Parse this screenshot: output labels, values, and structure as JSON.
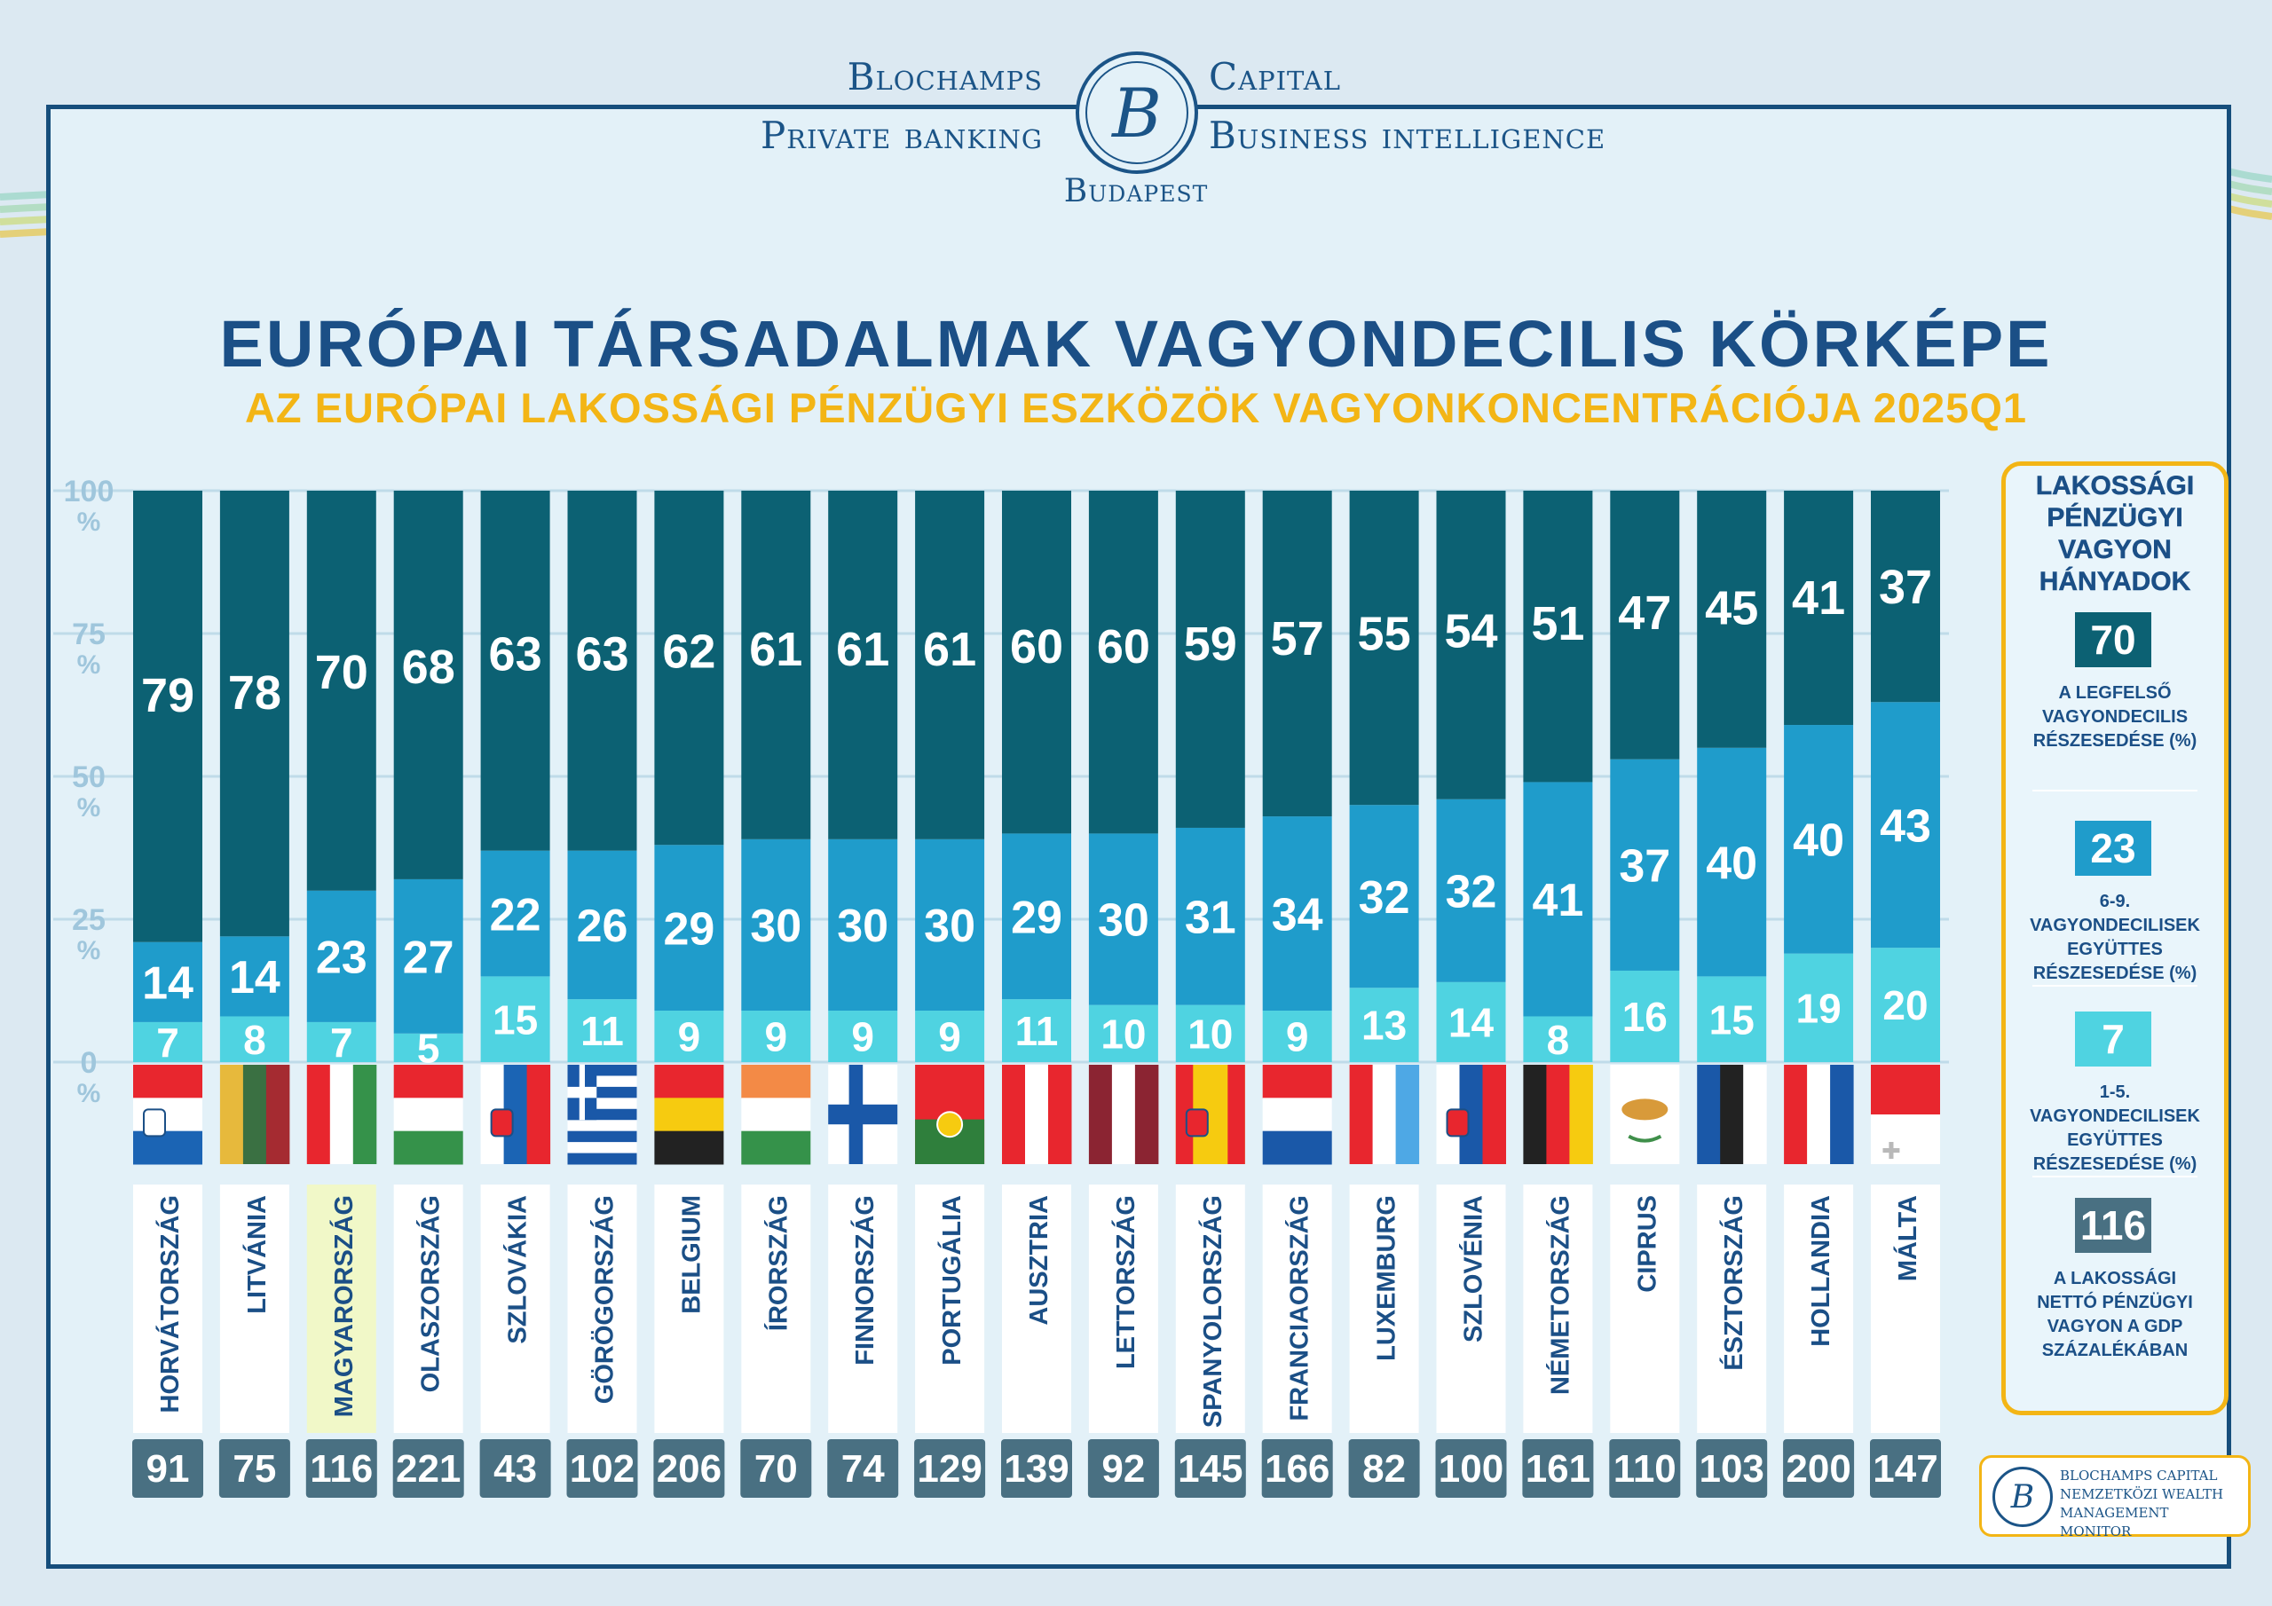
{
  "brand": {
    "left_top": "Blochamps",
    "left_bottom": "Private banking",
    "right_top": "Capital",
    "right_bottom": "Business intelligence",
    "city": "Budapest",
    "logo_letter": "B"
  },
  "colors": {
    "top_decile": "#0c6173",
    "deciles_6_9": "#1f9ccb",
    "deciles_1_5": "#4fd3e1",
    "label_box": "#497082",
    "title": "#1b4f86",
    "subtitle": "#f3b515",
    "highlight_label": "#f1f8c8"
  },
  "legend": {
    "title": "LAKOSSÁGI\nPÉNZÜGYI\nVAGYON\nHÁNYADOK",
    "items": [
      {
        "value": "70",
        "text": "A LEGFELSŐ\nVAGYONDECILIS\nRÉSZESEDÉSE (%)",
        "color": "#0c6173"
      },
      {
        "value": "23",
        "text": "6-9.\nVAGYONDECILISEK\nEGYÜTTES\nRÉSZESEDÉSE (%)",
        "color": "#1f9ccb"
      },
      {
        "value": "7",
        "text": "1-5.\nVAGYONDECILISEK\nEGYÜTTES\nRÉSZESEDÉSE (%)",
        "color": "#4fd3e1"
      },
      {
        "value": "116",
        "text": "A LAKOSSÁGI\nNETTÓ PÉNZÜGYI\nVAGYON A GDP\nSZÁZALÉKÁBAN",
        "color": "#497082"
      }
    ]
  },
  "watermark": {
    "logo_letter": "B",
    "text": "BLOCHAMPS CAPITAL\nNEMZETKÖZI WEALTH\nMANAGEMENT MONITOR"
  },
  "chart_data": {
    "type": "bar",
    "stacked": true,
    "title": "EURÓPAI TÁRSADALMAK VAGYONDECILIS KÖRKÉPE",
    "subtitle": "AZ EURÓPAI LAKOSSÁGI PÉNZÜGYI ESZKÖZÖK VAGYONKONCENTRÁCIÓJA 2025Q1",
    "ylim": [
      0,
      100
    ],
    "yticks": [
      {
        "value": 100,
        "label": "100",
        "unit": "%"
      },
      {
        "value": 75,
        "label": "75",
        "unit": "%"
      },
      {
        "value": 50,
        "label": "50",
        "unit": "%"
      },
      {
        "value": 25,
        "label": "25",
        "unit": "%"
      },
      {
        "value": 0,
        "label": "0",
        "unit": "%"
      }
    ],
    "grid": true,
    "categories": [
      "HORVÁTORSZÁG",
      "LITVÁNIA",
      "MAGYARORSZÁG",
      "OLASZORSZÁG",
      "SZLOVÁKIA",
      "GÖRÖGORSZÁG",
      "BELGIUM",
      "ÍRORSZÁG",
      "FINNORSZÁG",
      "PORTUGÁLIA",
      "AUSZTRIA",
      "LETTORSZÁG",
      "SPANYOLORSZÁG",
      "FRANCIAORSZÁG",
      "LUXEMBURG",
      "SZLOVÉNIA",
      "NÉMETORSZÁG",
      "CIPRUS",
      "ÉSZTORSZÁG",
      "HOLLANDIA",
      "MÁLTA"
    ],
    "highlight_category": "MAGYARORSZÁG",
    "series": [
      {
        "key": "bottom",
        "values": [
          7,
          8,
          7,
          5,
          15,
          11,
          9,
          9,
          9,
          9,
          11,
          10,
          10,
          9,
          13,
          14,
          8,
          16,
          15,
          19,
          20
        ]
      },
      {
        "key": "middle",
        "values": [
          14,
          14,
          23,
          27,
          22,
          26,
          29,
          30,
          30,
          30,
          29,
          30,
          31,
          34,
          32,
          32,
          41,
          37,
          40,
          40,
          43
        ]
      },
      {
        "key": "top",
        "values": [
          79,
          78,
          70,
          68,
          63,
          63,
          62,
          61,
          61,
          61,
          60,
          60,
          59,
          57,
          55,
          54,
          51,
          47,
          45,
          41,
          37
        ]
      }
    ],
    "gdp_ratio": [
      91,
      75,
      116,
      221,
      43,
      102,
      206,
      70,
      74,
      129,
      139,
      92,
      145,
      166,
      82,
      100,
      161,
      110,
      103,
      200,
      147
    ],
    "flags": [
      {
        "stripes": [
          "#e8262e",
          "#ffffff",
          "#1b64b4"
        ],
        "dir": "h",
        "emblem": "croatia-coat-of-arms"
      },
      {
        "stripes": [
          "#e7b93c",
          "#3a7042",
          "#a52b31"
        ],
        "dir": "v"
      },
      {
        "stripes": [
          "#e8262e",
          "#ffffff",
          "#35924a"
        ],
        "dir": "v"
      },
      {
        "stripes": [
          "#e8262e",
          "#ffffff",
          "#35924a"
        ],
        "dir": "h"
      },
      {
        "stripes": [
          "#ffffff",
          "#1b64b4",
          "#e8262e"
        ],
        "dir": "v",
        "emblem": "slovakia-coat-of-arms"
      },
      {
        "stripes": [
          "#1a58a8",
          "#ffffff"
        ],
        "dir": "greece"
      },
      {
        "stripes": [
          "#e8262e",
          "#f6cb10",
          "#222222"
        ],
        "dir": "h"
      },
      {
        "stripes": [
          "#f38a46",
          "#ffffff",
          "#35924a"
        ],
        "dir": "h"
      },
      {
        "stripes": [
          "#ffffff",
          "#1a58a8"
        ],
        "dir": "nordic"
      },
      {
        "stripes": [
          "#e8262e",
          "#2f7f3c"
        ],
        "dir": "portugal",
        "emblem": "portugal-armillary"
      },
      {
        "stripes": [
          "#e8262e",
          "#ffffff",
          "#e8262e"
        ],
        "dir": "v"
      },
      {
        "stripes": [
          "#8b2432",
          "#ffffff",
          "#8b2432"
        ],
        "dir": "v-thin"
      },
      {
        "stripes": [
          "#e8262e",
          "#f6cb10",
          "#e8262e"
        ],
        "dir": "v-wide",
        "emblem": "spain-coat-of-arms"
      },
      {
        "stripes": [
          "#e8262e",
          "#ffffff",
          "#1a58a8"
        ],
        "dir": "h"
      },
      {
        "stripes": [
          "#e8262e",
          "#ffffff",
          "#4ea8e5"
        ],
        "dir": "v"
      },
      {
        "stripes": [
          "#ffffff",
          "#1a58a8",
          "#e8262e"
        ],
        "dir": "v",
        "emblem": "slovenia-coat-of-arms"
      },
      {
        "stripes": [
          "#222222",
          "#e8262e",
          "#f6cb10"
        ],
        "dir": "v"
      },
      {
        "stripes": [
          "#ffffff"
        ],
        "dir": "plain",
        "emblem": "cyprus-map"
      },
      {
        "stripes": [
          "#1a58a8",
          "#222222",
          "#ffffff"
        ],
        "dir": "v"
      },
      {
        "stripes": [
          "#e8262e",
          "#ffffff",
          "#1a58a8"
        ],
        "dir": "v"
      },
      {
        "stripes": [
          "#e8262e",
          "#ffffff"
        ],
        "dir": "malta",
        "emblem": "malta-cross"
      }
    ]
  }
}
